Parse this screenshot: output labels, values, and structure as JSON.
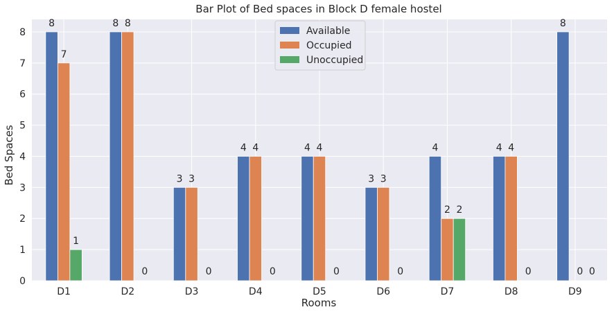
{
  "chart_data": {
    "type": "bar",
    "title": "Bar Plot of Bed spaces in Block D female hostel",
    "xlabel": "Rooms",
    "ylabel": "Bed Spaces",
    "categories": [
      "D1",
      "D2",
      "D3",
      "D4",
      "D5",
      "D6",
      "D7",
      "D8",
      "D9"
    ],
    "ylim": [
      0,
      8.4
    ],
    "yticks": [
      0,
      1,
      2,
      3,
      4,
      5,
      6,
      7,
      8
    ],
    "grid": true,
    "legend_position": "top-center",
    "series": [
      {
        "name": "Available",
        "values": [
          8,
          8,
          3,
          4,
          4,
          3,
          4,
          4,
          8
        ],
        "color": "#4c72b0"
      },
      {
        "name": "Occupied",
        "values": [
          7,
          8,
          3,
          4,
          4,
          3,
          2,
          4,
          0
        ],
        "color": "#dd8452"
      },
      {
        "name": "Unoccupied",
        "values": [
          1,
          0,
          0,
          0,
          0,
          0,
          2,
          0,
          0
        ],
        "color": "#55a868"
      }
    ],
    "background": "#eaeaf2",
    "grid_color": "#ffffff"
  }
}
